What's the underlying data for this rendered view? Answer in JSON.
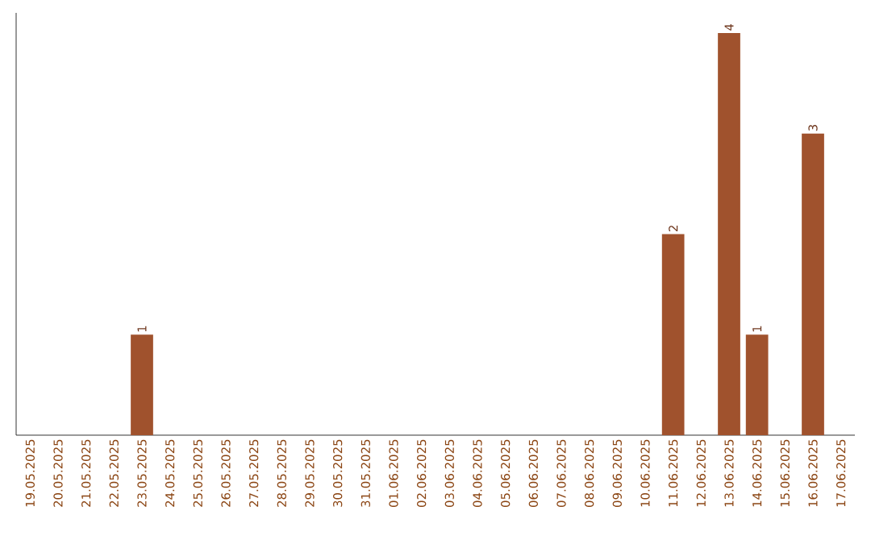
{
  "chart_data": {
    "type": "bar",
    "categories": [
      "19.05.2025",
      "20.05.2025",
      "21.05.2025",
      "22.05.2025",
      "23.05.2025",
      "24.05.2025",
      "25.05.2025",
      "26.05.2025",
      "27.05.2025",
      "28.05.2025",
      "29.05.2025",
      "30.05.2025",
      "31.05.2025",
      "01.06.2025",
      "02.06.2025",
      "03.06.2025",
      "04.06.2025",
      "05.06.2025",
      "06.06.2025",
      "07.06.2025",
      "08.06.2025",
      "09.06.2025",
      "10.06.2025",
      "11.06.2025",
      "12.06.2025",
      "13.06.2025",
      "14.06.2025",
      "15.06.2025",
      "16.06.2025",
      "17.06.2025"
    ],
    "values": [
      0,
      0,
      0,
      0,
      1,
      0,
      0,
      0,
      0,
      0,
      0,
      0,
      0,
      0,
      0,
      0,
      0,
      0,
      0,
      0,
      0,
      0,
      0,
      2,
      0,
      4,
      1,
      0,
      3,
      0
    ],
    "value_labels": [
      null,
      null,
      null,
      null,
      "1",
      null,
      null,
      null,
      null,
      null,
      null,
      null,
      null,
      null,
      null,
      null,
      null,
      null,
      null,
      null,
      null,
      null,
      null,
      "2",
      null,
      "4",
      "1",
      null,
      "3",
      null
    ],
    "color": "#a0522d",
    "tick_labels": "x"
  }
}
